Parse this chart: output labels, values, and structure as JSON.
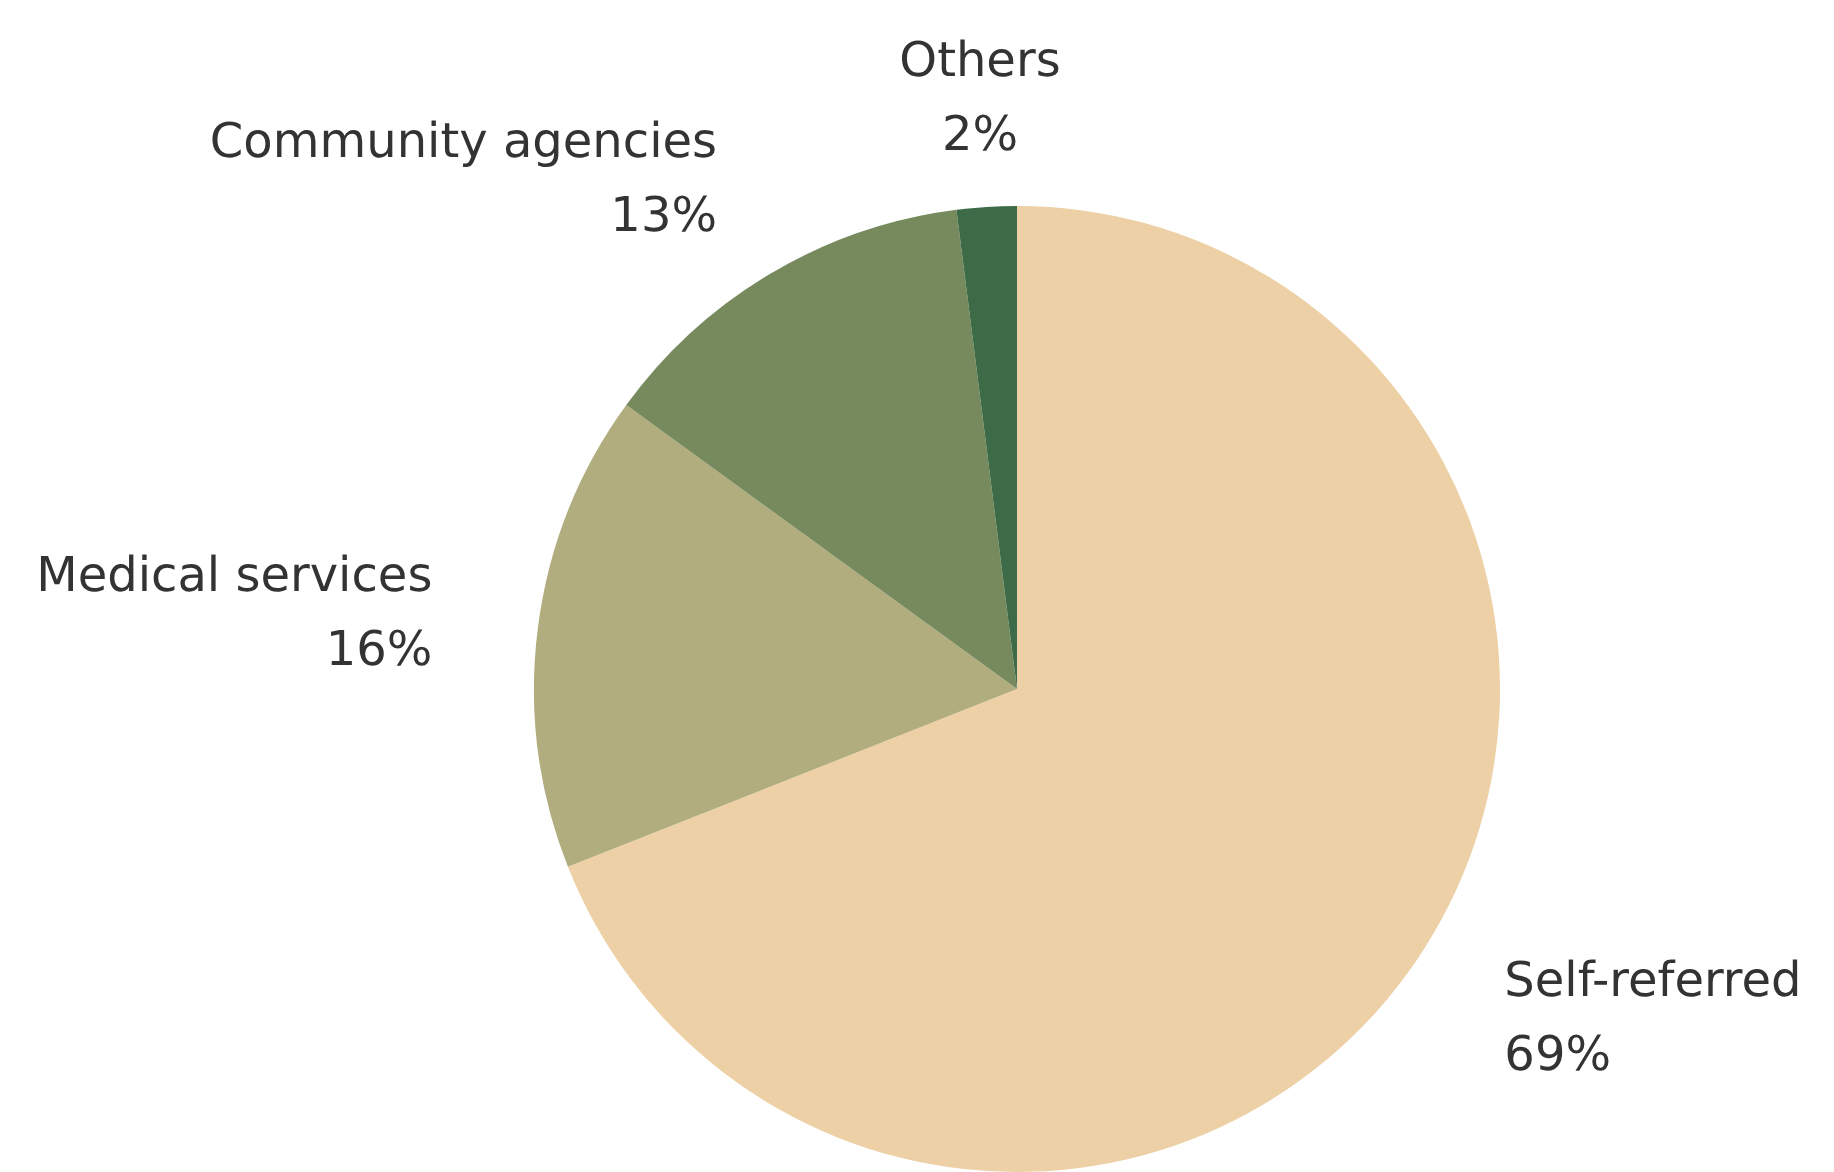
{
  "chart_data": {
    "type": "pie",
    "categories": [
      "Self-referred",
      "Medical services",
      "Community agencies",
      "Others"
    ],
    "values": [
      69,
      16,
      13,
      2
    ],
    "value_labels": [
      "69%",
      "16%",
      "13%",
      "2%"
    ],
    "colors": [
      "#edd0a5",
      "#b1ad7e",
      "#778a5e",
      "#3d6b47"
    ]
  }
}
